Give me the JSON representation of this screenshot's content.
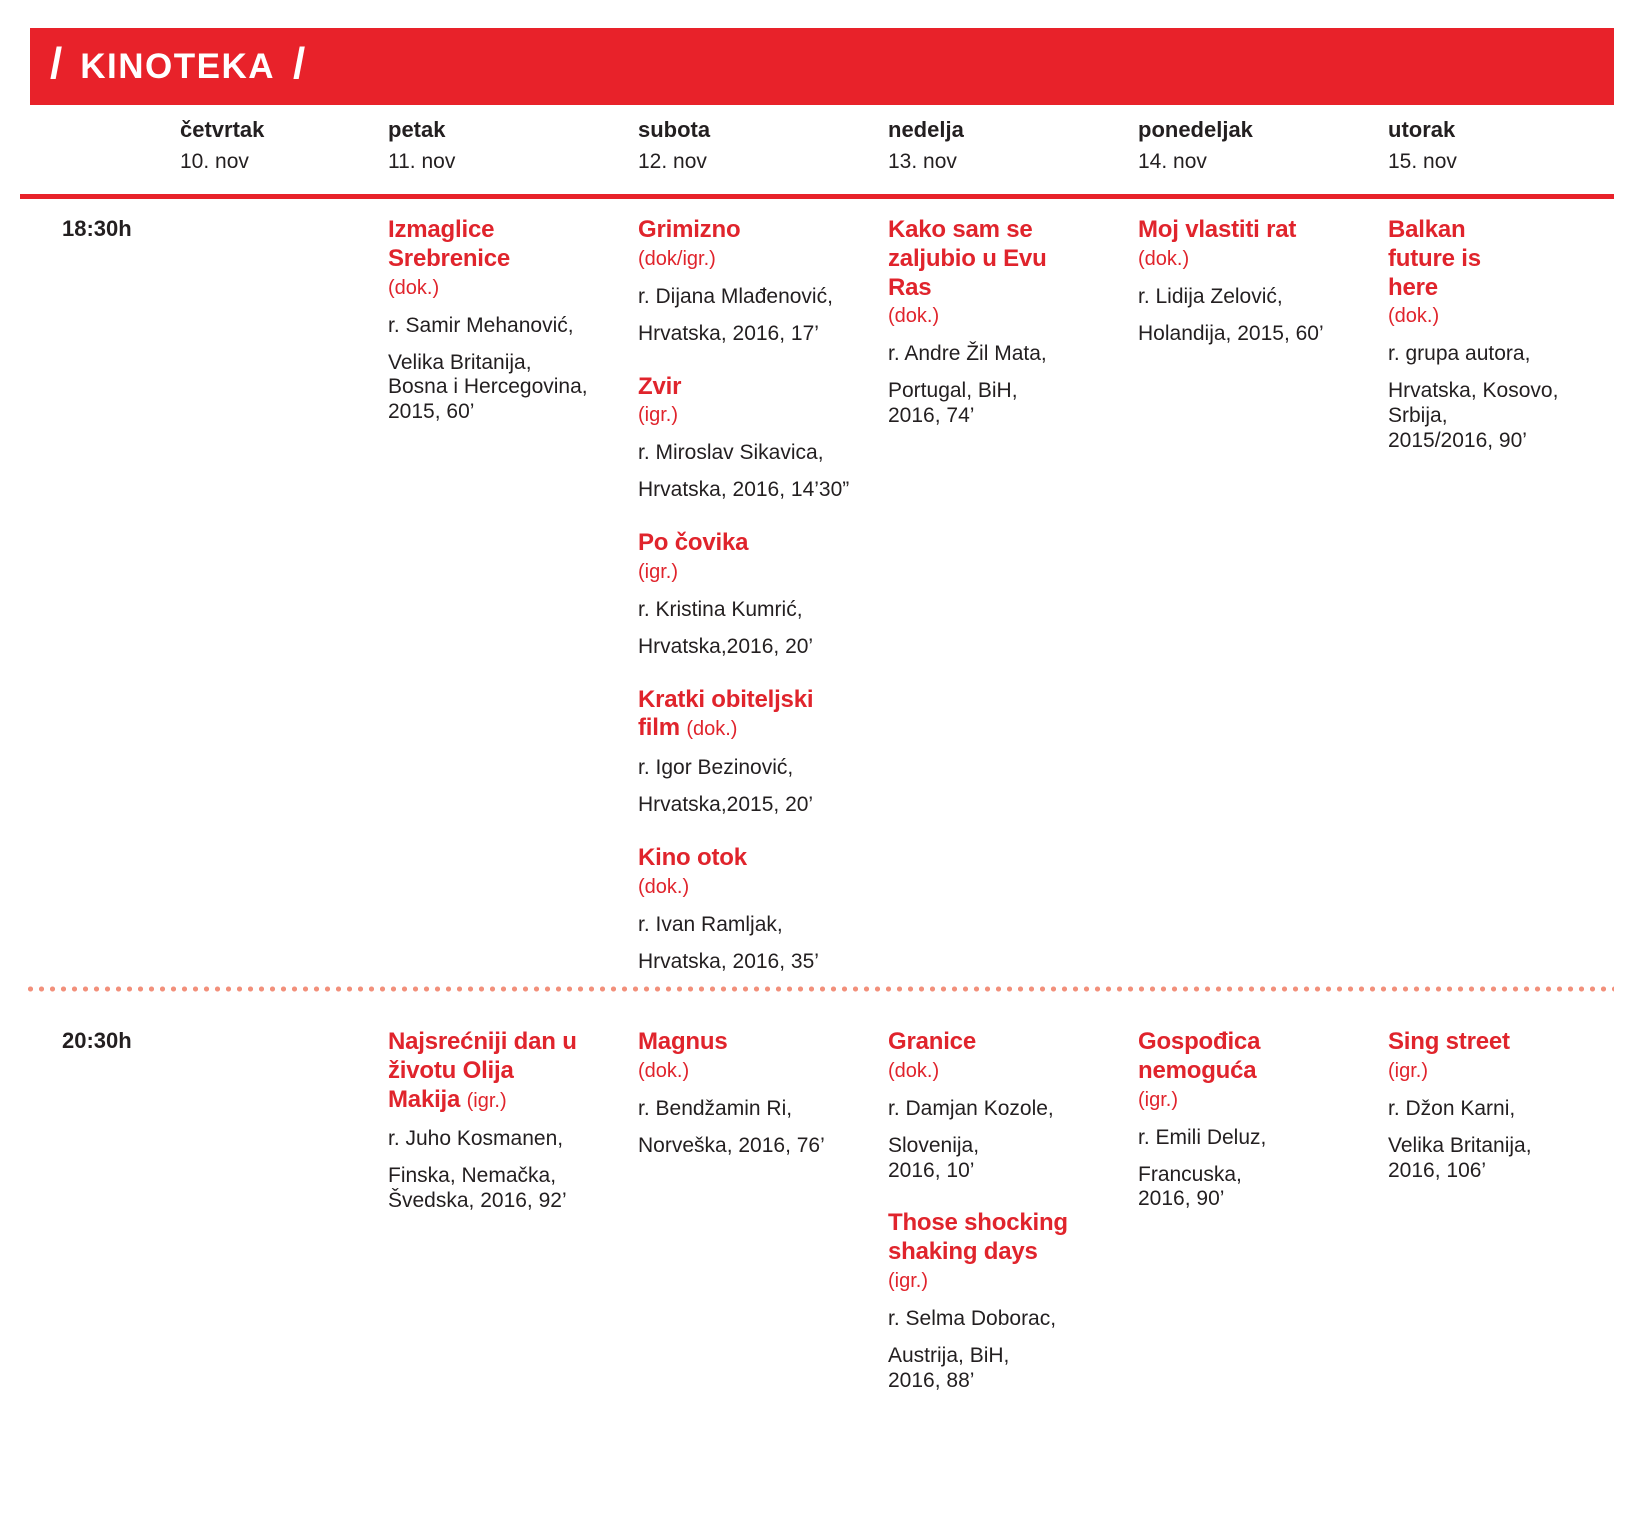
{
  "header": {
    "title": "KINOTEKA",
    "slash": "/",
    "bar_color": "#e8222a"
  },
  "colors": {
    "accent_red": "#e0242c",
    "dotted_separator": "#f2907b",
    "text": "#231f20"
  },
  "days": [
    {
      "name": "četvrtak",
      "date": "10. nov"
    },
    {
      "name": "petak",
      "date": "11. nov"
    },
    {
      "name": "subota",
      "date": "12. nov"
    },
    {
      "name": "nedelja",
      "date": "13. nov"
    },
    {
      "name": "ponedeljak",
      "date": "14. nov"
    },
    {
      "name": "utorak",
      "date": "15. nov"
    }
  ],
  "rows": [
    {
      "time": "18:30h",
      "cells": [
        [],
        [
          {
            "title": "Izmaglice Srebrenice",
            "type": "(dok.)",
            "director": "r. Samir Mehanović,",
            "details": [
              "Velika Britanija,",
              "Bosna i Hercegovina,",
              "2015, 60’"
            ]
          }
        ],
        [
          {
            "title": "Grimizno",
            "type": "(dok/igr.)",
            "director": "r. Dijana Mlađenović,",
            "details": [
              "Hrvatska, 2016, 17’"
            ]
          },
          {
            "title": "Zvir",
            "type": "(igr.)",
            "director": "r. Miroslav Sikavica,",
            "details": [
              "Hrvatska, 2016, 14’30”"
            ]
          },
          {
            "title": "Po čovika",
            "type": "(igr.)",
            "director": "r. Kristina Kumrić,",
            "details": [
              "Hrvatska,2016, 20’"
            ]
          },
          {
            "title": "Kratki obiteljski film",
            "type": "(dok.)",
            "type_inline": true,
            "director": "r. Igor Bezinović,",
            "details": [
              "Hrvatska,2015, 20’"
            ]
          },
          {
            "title": "Kino otok",
            "type": "(dok.)",
            "director": "r. Ivan Ramljak,",
            "details": [
              "Hrvatska, 2016, 35’"
            ]
          }
        ],
        [
          {
            "title": "Kako sam se zaljubio u Evu Ras",
            "type": "(dok.)",
            "director": "r. Andre Žil Mata,",
            "details": [
              "Portugal, BiH,",
              "2016, 74’"
            ]
          }
        ],
        [
          {
            "title": "Moj vlastiti rat",
            "type": "(dok.)",
            "director": "r. Lidija Zelović,",
            "details": [
              "Holandija, 2015, 60’"
            ]
          }
        ],
        [
          {
            "title": "Balkan future is here",
            "type": "(dok.)",
            "director": "r. grupa autora,",
            "details": [
              "Hrvatska, Kosovo,",
              "Srbija,",
              "2015/2016, 90’"
            ]
          }
        ]
      ]
    },
    {
      "time": "20:30h",
      "cells": [
        [],
        [
          {
            "title": "Najsrećniji dan u životu Olija Makija",
            "type": "(igr.)",
            "type_inline": true,
            "director": "r. Juho Kosmanen,",
            "details": [
              "Finska, Nemačka,",
              "Švedska, 2016, 92’"
            ]
          }
        ],
        [
          {
            "title": "Magnus",
            "type": "(dok.)",
            "director": "r. Bendžamin Ri,",
            "details": [
              "Norveška, 2016, 76’"
            ]
          }
        ],
        [
          {
            "title": "Granice",
            "type": "(dok.)",
            "director": "r. Damjan Kozole,",
            "details": [
              "Slovenija,",
              "2016, 10’"
            ]
          },
          {
            "title": "Those shocking shaking days",
            "type": "(igr.)",
            "director": "r. Selma Doborac,",
            "details": [
              "Austrija, BiH,",
              "2016, 88’"
            ]
          }
        ],
        [
          {
            "title": "Gospođica nemoguća",
            "type": "(igr.)",
            "director": "r. Emili Deluz,",
            "details": [
              "Francuska,",
              "2016, 90’"
            ]
          }
        ],
        [
          {
            "title": "Sing street",
            "type": "(igr.)",
            "director": "r. Džon Karni,",
            "details": [
              "Velika Britanija,",
              "2016, 106’"
            ]
          }
        ]
      ]
    }
  ]
}
